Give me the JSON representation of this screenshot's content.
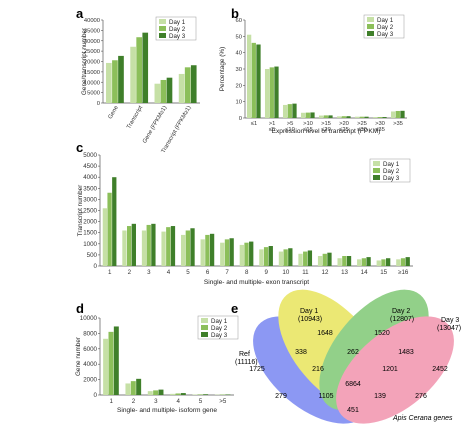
{
  "colors": {
    "day1": "#c6e0a6",
    "day2": "#8cbf5a",
    "day3": "#3f7f2a",
    "axis": "#555555"
  },
  "chart_data": [
    {
      "panel": "a",
      "type": "bar",
      "categories": [
        "Gene",
        "Transcript",
        "Gene (FPKM≥1)",
        "Transcript (FPKM≥1)"
      ],
      "series": [
        {
          "name": "Day 1",
          "values": [
            19300,
            27100,
            9300,
            14000
          ]
        },
        {
          "name": "Day 2",
          "values": [
            20600,
            31700,
            11100,
            17200
          ]
        },
        {
          "name": "Day 3",
          "values": [
            22700,
            33900,
            12200,
            18200
          ]
        }
      ],
      "xlabel": "",
      "ylabel": "Gene/transcript number",
      "ylim": [
        0,
        40000
      ],
      "yticks": [
        "0",
        "5000",
        "10000",
        "15000",
        "20000",
        "25000",
        "30000",
        "35000",
        "40000"
      ],
      "legend": "top-right"
    },
    {
      "panel": "b",
      "type": "bar",
      "categories": [
        "≤1",
        ">1 ≤5",
        ">5 ≤10",
        ">10 ≤15",
        ">15 ≤20",
        ">20 ≤25",
        ">25 ≤30",
        ">30 ≤35",
        ">35"
      ],
      "series": [
        {
          "name": "Day 1",
          "values": [
            51,
            30,
            8,
            3.2,
            1.5,
            1,
            0.8,
            0.6,
            4
          ]
        },
        {
          "name": "Day 2",
          "values": [
            46,
            31,
            8.5,
            3.3,
            1.6,
            1.1,
            0.8,
            0.6,
            4.3
          ]
        },
        {
          "name": "Day 3",
          "values": [
            45,
            31.5,
            8.8,
            3.4,
            1.6,
            1.1,
            0.8,
            0.6,
            4.4
          ]
        }
      ],
      "xlabel": "Expression level of transcript (FPKM)",
      "ylabel": "Percentage (%)",
      "ylim": [
        0,
        60
      ],
      "yticks": [
        "0",
        "10",
        "20",
        "30",
        "40",
        "50",
        "60"
      ],
      "legend": "top-right"
    },
    {
      "panel": "c",
      "type": "bar",
      "categories": [
        "1",
        "2",
        "3",
        "4",
        "5",
        "6",
        "7",
        "8",
        "9",
        "10",
        "11",
        "12",
        "13",
        "14",
        "15",
        "≥16"
      ],
      "series": [
        {
          "name": "Day 1",
          "values": [
            2600,
            1600,
            1600,
            1550,
            1400,
            1200,
            1050,
            950,
            750,
            650,
            550,
            450,
            350,
            300,
            250,
            300
          ]
        },
        {
          "name": "Day 2",
          "values": [
            3300,
            1800,
            1850,
            1750,
            1600,
            1400,
            1200,
            1050,
            850,
            750,
            650,
            550,
            450,
            350,
            300,
            350
          ]
        },
        {
          "name": "Day 3",
          "values": [
            4000,
            1900,
            1900,
            1800,
            1700,
            1450,
            1250,
            1100,
            900,
            800,
            700,
            600,
            450,
            400,
            350,
            400
          ]
        }
      ],
      "xlabel": "Single- and multiple- exon transcript",
      "ylabel": "Transcript number",
      "ylim": [
        0,
        5000
      ],
      "yticks": [
        "0",
        "500",
        "1000",
        "1500",
        "2000",
        "2500",
        "3000",
        "3500",
        "4000",
        "4500",
        "5000"
      ],
      "legend": "top-right"
    },
    {
      "panel": "d",
      "type": "bar",
      "categories": [
        "1",
        "2",
        "3",
        "4",
        "5",
        ">5"
      ],
      "series": [
        {
          "name": "Day 1",
          "values": [
            7300,
            1500,
            500,
            150,
            60,
            50
          ]
        },
        {
          "name": "Day 2",
          "values": [
            8200,
            1800,
            600,
            200,
            80,
            60
          ]
        },
        {
          "name": "Day 3",
          "values": [
            8900,
            2100,
            700,
            250,
            100,
            70
          ]
        }
      ],
      "xlabel": "Single- and multiple- isoform gene",
      "ylabel": "Gene number",
      "ylim": [
        0,
        10000
      ],
      "yticks": [
        "0",
        "2000",
        "4000",
        "6000",
        "8000",
        "10000"
      ],
      "legend": "top-right"
    }
  ],
  "panel_labels": {
    "a": "a",
    "b": "b",
    "c": "c",
    "d": "d",
    "e": "e"
  },
  "venn": {
    "sets": [
      {
        "name": "Ref",
        "count": "(11116)",
        "color": "#4a5fd6"
      },
      {
        "name": "Day 1",
        "count": "(10943)",
        "color": "#c5c21a"
      },
      {
        "name": "Day 2",
        "count": "(12807)",
        "color": "#27a33c"
      },
      {
        "name": "Day 3",
        "count": "(13047)",
        "color": "#e23c6a"
      }
    ],
    "regions": [
      "1648",
      "1520",
      "338",
      "262",
      "1483",
      "1725",
      "2452",
      "216",
      "1201",
      "6864",
      "279",
      "1105",
      "139",
      "276",
      "451"
    ],
    "caption": "Apis Cerana genes"
  }
}
